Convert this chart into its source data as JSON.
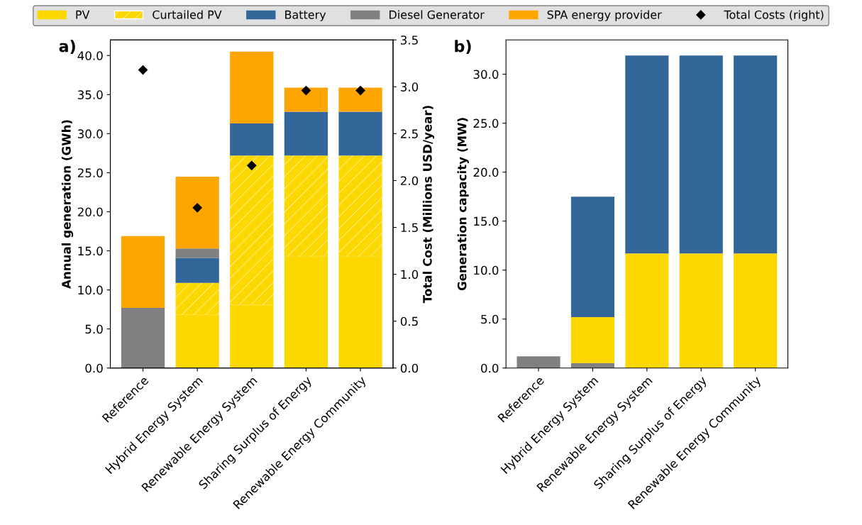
{
  "chart_data": [
    {
      "type": "bar",
      "title": "a)",
      "ylabel": "Annual generation (GWh)",
      "y2label": "Total Cost (Millions USD/year)",
      "stacked": true,
      "legend": "top",
      "grid": false,
      "categories": [
        "Reference",
        "Hybrid Energy System",
        "Renewable Energy System",
        "Sharing Surplus of Energy",
        "Renewable Energy Community"
      ],
      "series": [
        {
          "name": "PV",
          "color": "#fdd700",
          "values": [
            0,
            6.8,
            8.1,
            14.3,
            14.3
          ]
        },
        {
          "name": "Curtailed PV",
          "color": "#fdd700",
          "values": [
            0,
            4.1,
            19.1,
            12.9,
            12.9
          ]
        },
        {
          "name": "Battery",
          "color": "#336699",
          "values": [
            0,
            3.2,
            4.1,
            5.6,
            5.6
          ]
        },
        {
          "name": "Diesel Generator",
          "color": "#808080",
          "values": [
            7.7,
            1.2,
            0,
            0,
            0
          ]
        },
        {
          "name": "SPA energy provider",
          "color": "#ffa500",
          "values": [
            9.2,
            9.2,
            9.2,
            3.1,
            3.1
          ]
        },
        {
          "name": "Total Costs (right)",
          "type": "scatter",
          "axis": "y2",
          "marker": "diamond",
          "color": "#000000",
          "values": [
            3.18,
            1.71,
            2.16,
            2.96,
            2.96
          ]
        }
      ],
      "ylim": [
        0,
        42
      ],
      "yticks": [
        {
          "value": 0,
          "label": "0.0"
        },
        {
          "value": 5,
          "label": "5.0"
        },
        {
          "value": 10,
          "label": "10.0"
        },
        {
          "value": 15,
          "label": "15.0"
        },
        {
          "value": 20,
          "label": "20.0"
        },
        {
          "value": 25,
          "label": "25.0"
        },
        {
          "value": 30,
          "label": "30.0"
        },
        {
          "value": 35,
          "label": "35.0"
        },
        {
          "value": 40,
          "label": "40.0"
        }
      ],
      "y2lim": [
        0,
        3.5
      ],
      "y2ticks": [
        {
          "value": 0,
          "label": "0.0"
        },
        {
          "value": 0.5,
          "label": "0.5"
        },
        {
          "value": 1,
          "label": "1.0"
        },
        {
          "value": 1.5,
          "label": "1.5"
        },
        {
          "value": 2,
          "label": "2.0"
        },
        {
          "value": 2.5,
          "label": "2.5"
        },
        {
          "value": 3,
          "label": "3.0"
        },
        {
          "value": 3.5,
          "label": "3.5"
        }
      ]
    },
    {
      "type": "bar",
      "title": "b)",
      "ylabel": "Generation capacity (MW)",
      "stacked": true,
      "grid": false,
      "categories": [
        "Reference",
        "Hybrid Energy System",
        "Renewable Energy System",
        "Sharing Surplus of Energy",
        "Renewable Energy Community"
      ],
      "series": [
        {
          "color": "#808080",
          "values": [
            1.2,
            0.5,
            0,
            0,
            0
          ]
        },
        {
          "color": "#fdd700",
          "values": [
            0,
            4.7,
            11.7,
            11.7,
            11.7
          ]
        },
        {
          "color": "#336699",
          "values": [
            0,
            12.3,
            20.2,
            20.2,
            20.2
          ]
        }
      ],
      "ylim": [
        0,
        33.5
      ],
      "yticks": [
        {
          "value": 0,
          "label": "0.0"
        },
        {
          "value": 5,
          "label": "5.0"
        },
        {
          "value": 10,
          "label": "10.0"
        },
        {
          "value": 15,
          "label": "15.0"
        },
        {
          "value": 20,
          "label": "20.0"
        },
        {
          "value": 25,
          "label": "25.0"
        },
        {
          "value": 30,
          "label": "30.0"
        }
      ]
    }
  ]
}
